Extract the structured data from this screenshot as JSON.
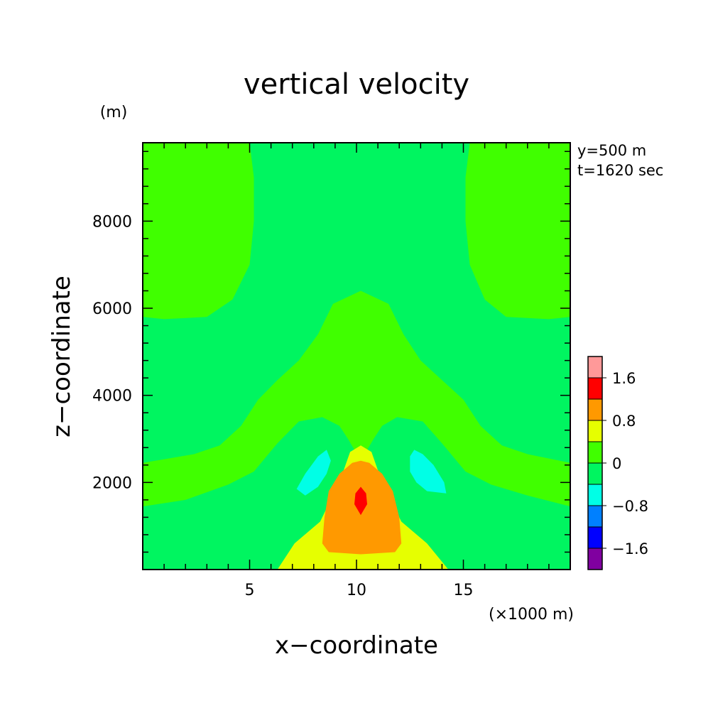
{
  "chart_data": {
    "type": "contour",
    "title": "vertical velocity",
    "xlabel": "x−coordinate",
    "ylabel": "z−coordinate",
    "x_unit": "(×1000 m)",
    "y_unit": "(m)",
    "annotations": [
      "y=500 m",
      "t=1620 sec"
    ],
    "xlim": [
      0,
      20
    ],
    "ylim": [
      0,
      9800
    ],
    "x_ticks": [
      {
        "value": 5,
        "label": "5"
      },
      {
        "value": 10,
        "label": "10"
      },
      {
        "value": 15,
        "label": "15"
      }
    ],
    "y_ticks": [
      {
        "value": 2000,
        "label": "2000"
      },
      {
        "value": 4000,
        "label": "4000"
      },
      {
        "value": 6000,
        "label": "6000"
      },
      {
        "value": 8000,
        "label": "8000"
      }
    ],
    "colorbar": {
      "bins": [
        {
          "level": -2.0,
          "color": "#8000a0"
        },
        {
          "level": -1.6,
          "color": "#0000ff"
        },
        {
          "level": -1.2,
          "color": "#0080ff"
        },
        {
          "level": -0.8,
          "color": "#00ffe6"
        },
        {
          "level": -0.4,
          "color": "#00f560"
        },
        {
          "level": 0.0,
          "color": "#40ff00"
        },
        {
          "level": 0.4,
          "color": "#e6ff00"
        },
        {
          "level": 0.8,
          "color": "#ff9900"
        },
        {
          "level": 1.2,
          "color": "#ff0000"
        },
        {
          "level": 1.6,
          "color": "#ff9999"
        }
      ],
      "labels": [
        {
          "value": 1.6,
          "label": "1.6"
        },
        {
          "value": 0.8,
          "label": "0.8"
        },
        {
          "value": 0,
          "label": "0"
        },
        {
          "value": -0.8,
          "label": "−0.8"
        },
        {
          "value": -1.6,
          "label": "−1.6"
        }
      ]
    },
    "regions": [
      {
        "name": "background",
        "level": -0.4,
        "points": [
          [
            0,
            0
          ],
          [
            20,
            0
          ],
          [
            20,
            9800
          ],
          [
            0,
            9800
          ]
        ]
      },
      {
        "name": "upper-left-updraft",
        "level": 0.0,
        "points": [
          [
            0,
            9800
          ],
          [
            5,
            9800
          ],
          [
            5.2,
            9000
          ],
          [
            5.2,
            8000
          ],
          [
            5,
            7000
          ],
          [
            4.2,
            6200
          ],
          [
            3,
            5800
          ],
          [
            1,
            5750
          ],
          [
            0,
            5800
          ]
        ]
      },
      {
        "name": "upper-right-updraft",
        "level": 0.0,
        "points": [
          [
            15.3,
            9800
          ],
          [
            20,
            9800
          ],
          [
            20,
            5800
          ],
          [
            19,
            5750
          ],
          [
            17,
            5800
          ],
          [
            16,
            6200
          ],
          [
            15.3,
            7000
          ],
          [
            15.1,
            8000
          ],
          [
            15.1,
            9000
          ]
        ]
      },
      {
        "name": "central-updraft-plume",
        "level": 0.0,
        "points": [
          [
            0,
            1450
          ],
          [
            2,
            1600
          ],
          [
            4,
            1950
          ],
          [
            5.2,
            2250
          ],
          [
            6.3,
            2900
          ],
          [
            7.3,
            3400
          ],
          [
            8.4,
            3500
          ],
          [
            9.2,
            3300
          ],
          [
            9.6,
            3000
          ],
          [
            10.2,
            2500
          ],
          [
            10.8,
            3000
          ],
          [
            11.2,
            3300
          ],
          [
            11.9,
            3500
          ],
          [
            13.1,
            3400
          ],
          [
            14,
            2900
          ],
          [
            15.1,
            2250
          ],
          [
            16.3,
            1950
          ],
          [
            18,
            1700
          ],
          [
            20,
            1450
          ],
          [
            20,
            2450
          ],
          [
            18,
            2650
          ],
          [
            16.8,
            2850
          ],
          [
            15.8,
            3300
          ],
          [
            15,
            3900
          ],
          [
            14,
            4350
          ],
          [
            13,
            4800
          ],
          [
            12.2,
            5400
          ],
          [
            11.5,
            6100
          ],
          [
            10.2,
            6400
          ],
          [
            8.9,
            6100
          ],
          [
            8.2,
            5400
          ],
          [
            7.3,
            4800
          ],
          [
            6.3,
            4350
          ],
          [
            5.4,
            3900
          ],
          [
            4.6,
            3300
          ],
          [
            3.6,
            2850
          ],
          [
            2.4,
            2650
          ],
          [
            0,
            2450
          ]
        ]
      },
      {
        "name": "updraft-core-yellow",
        "level": 0.4,
        "points": [
          [
            6.3,
            0
          ],
          [
            7.1,
            600
          ],
          [
            8.3,
            1100
          ],
          [
            9.2,
            2000
          ],
          [
            9.7,
            2700
          ],
          [
            10.2,
            2850
          ],
          [
            10.7,
            2700
          ],
          [
            11.2,
            2000
          ],
          [
            12.1,
            1100
          ],
          [
            13.3,
            600
          ],
          [
            14.3,
            0
          ]
        ]
      },
      {
        "name": "updraft-core-orange",
        "level": 0.8,
        "points": [
          [
            8.4,
            600
          ],
          [
            8.7,
            400
          ],
          [
            10.2,
            350
          ],
          [
            11.8,
            400
          ],
          [
            12.1,
            600
          ],
          [
            12,
            1200
          ],
          [
            11.7,
            1800
          ],
          [
            11.2,
            2200
          ],
          [
            10.6,
            2450
          ],
          [
            10.2,
            2500
          ],
          [
            9.8,
            2450
          ],
          [
            9.2,
            2200
          ],
          [
            8.7,
            1800
          ],
          [
            8.5,
            1200
          ]
        ]
      },
      {
        "name": "updraft-core-red",
        "level": 1.2,
        "points": [
          [
            10.2,
            1250
          ],
          [
            10.5,
            1500
          ],
          [
            10.45,
            1750
          ],
          [
            10.2,
            1900
          ],
          [
            9.95,
            1750
          ],
          [
            9.9,
            1500
          ]
        ]
      },
      {
        "name": "left-downdraft",
        "level": -0.8,
        "points": [
          [
            7.2,
            1850
          ],
          [
            7.6,
            2200
          ],
          [
            8.2,
            2600
          ],
          [
            8.6,
            2750
          ],
          [
            8.8,
            2500
          ],
          [
            8.6,
            2200
          ],
          [
            8.2,
            1900
          ],
          [
            7.6,
            1700
          ]
        ]
      },
      {
        "name": "right-downdraft",
        "level": -0.8,
        "points": [
          [
            12.5,
            2600
          ],
          [
            12.5,
            2250
          ],
          [
            12.8,
            2000
          ],
          [
            13.3,
            1800
          ],
          [
            14.2,
            1750
          ],
          [
            14.1,
            2000
          ],
          [
            13.6,
            2400
          ],
          [
            13.1,
            2650
          ],
          [
            12.7,
            2750
          ]
        ]
      }
    ]
  }
}
